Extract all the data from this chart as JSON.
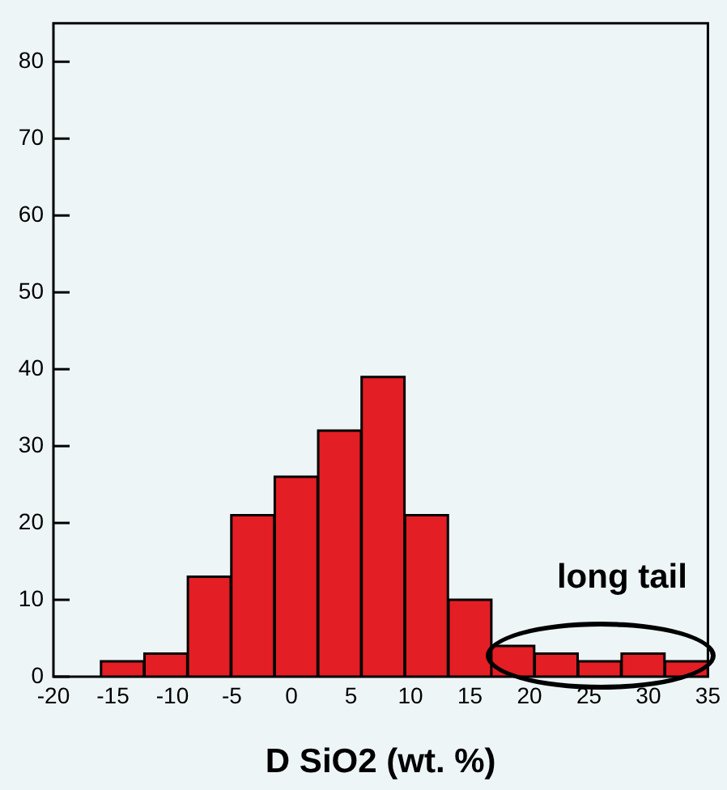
{
  "chart_data": {
    "type": "histogram",
    "xlabel": "D SiO2 (wt. %)",
    "bins": [
      -16,
      -12.4,
      -8.7,
      -5.1,
      -1.4,
      2.2,
      5.9,
      9.5,
      13.2,
      16.8,
      20.4,
      24.1,
      27.7,
      31.4,
      35
    ],
    "values": [
      2,
      3,
      13,
      21,
      26,
      32,
      39,
      21,
      10,
      4,
      3,
      2,
      3,
      2
    ],
    "color": "#e31e24",
    "xlim": [
      -20,
      35
    ],
    "xticks": [
      -20,
      -15,
      -10,
      -5,
      0,
      5,
      10,
      15,
      20,
      25,
      30,
      35
    ],
    "ylim": [
      0,
      85
    ],
    "yticks": [
      0,
      10,
      20,
      30,
      40,
      50,
      60,
      70,
      80
    ],
    "annotations": [
      "long tail"
    ]
  }
}
